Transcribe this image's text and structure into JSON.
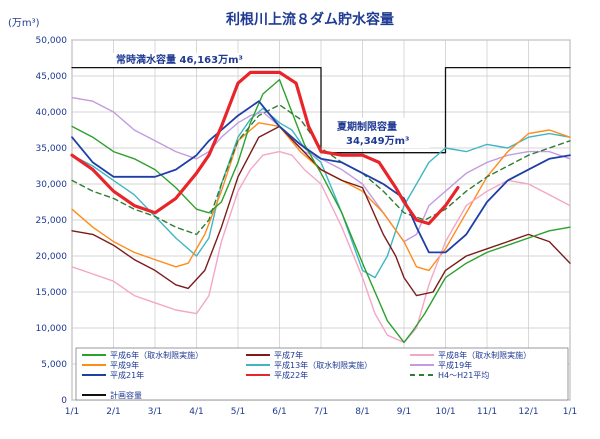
{
  "chart_data": {
    "type": "line",
    "title": "利根川上流８ダム貯水容量",
    "ylabel": "(万m³)",
    "ylim": [
      0,
      50000
    ],
    "yticks": [
      0,
      5000,
      10000,
      15000,
      20000,
      25000,
      30000,
      35000,
      40000,
      45000,
      50000
    ],
    "ytick_labels": [
      "0",
      "5,000",
      "10,000",
      "15,000",
      "20,000",
      "25,000",
      "30,000",
      "35,000",
      "40,000",
      "45,000",
      "50,000"
    ],
    "xlim": [
      1,
      13
    ],
    "xticks": [
      1,
      2,
      3,
      4,
      5,
      6,
      7,
      8,
      9,
      10,
      11,
      12,
      13
    ],
    "xtick_labels": [
      "1/1",
      "2/1",
      "3/1",
      "4/1",
      "5/1",
      "6/1",
      "7/1",
      "8/1",
      "9/1",
      "10/1",
      "11/1",
      "12/1",
      "1/1"
    ],
    "annotations": {
      "normal_capacity_label": "常時満水容量 46,163万m³",
      "summer_capacity_label1": "夏期制限容量",
      "summer_capacity_label2": "34,349万m³"
    },
    "series": [
      {
        "name": "平成6年（取水制限実施）",
        "color": "#2ca02c",
        "width": 1.4,
        "dash": "",
        "x": [
          1,
          1.5,
          2,
          2.5,
          3,
          3.5,
          4,
          4.3,
          4.6,
          5,
          5.3,
          5.6,
          6,
          6.3,
          6.6,
          7,
          7.5,
          8,
          8.3,
          8.6,
          9,
          9.2,
          9.5,
          10,
          10.5,
          11,
          11.5,
          12,
          12.5,
          13
        ],
        "y": [
          38000,
          36500,
          34500,
          33500,
          32000,
          29500,
          26500,
          26000,
          27500,
          33000,
          38500,
          42500,
          44500,
          40000,
          35500,
          31500,
          26000,
          19000,
          15000,
          11000,
          8000,
          9500,
          12000,
          17000,
          19000,
          20500,
          21500,
          22500,
          23500,
          24000
        ]
      },
      {
        "name": "平成7年",
        "color": "#7b1c1c",
        "width": 1.4,
        "dash": "",
        "x": [
          1,
          1.5,
          2,
          2.5,
          3,
          3.5,
          3.8,
          4.2,
          4.6,
          5,
          5.5,
          6,
          6.5,
          7,
          7.5,
          8,
          8.5,
          8.8,
          9,
          9.3,
          9.7,
          10,
          10.5,
          11,
          11.5,
          12,
          12.5,
          13
        ],
        "y": [
          23500,
          23000,
          21500,
          19500,
          18000,
          16000,
          15500,
          18000,
          24000,
          31000,
          36500,
          38000,
          35000,
          32000,
          30500,
          29500,
          23000,
          20000,
          17000,
          14500,
          15000,
          18000,
          20000,
          21000,
          22000,
          23000,
          22000,
          19000
        ]
      },
      {
        "name": "平成8年（取水制限実施）",
        "color": "#f4a6c6",
        "width": 1.4,
        "dash": "",
        "x": [
          1,
          1.5,
          2,
          2.5,
          3,
          3.5,
          4,
          4.3,
          4.6,
          5,
          5.3,
          5.6,
          6,
          6.3,
          6.6,
          7,
          7.5,
          8,
          8.3,
          8.6,
          9,
          9.3,
          9.6,
          10,
          10.5,
          11,
          11.5,
          12,
          12.5,
          13
        ],
        "y": [
          18500,
          17500,
          16500,
          14500,
          13500,
          12500,
          12000,
          14500,
          22000,
          29000,
          32000,
          34000,
          34500,
          34000,
          32000,
          30000,
          24000,
          17000,
          12000,
          9000,
          8000,
          10000,
          16000,
          22000,
          27000,
          29000,
          30500,
          30000,
          28500,
          27000
        ]
      },
      {
        "name": "平成9年",
        "color": "#ff8c1a",
        "width": 1.4,
        "dash": "",
        "x": [
          1,
          1.5,
          2,
          2.5,
          3,
          3.5,
          3.8,
          4.2,
          4.6,
          5,
          5.5,
          6,
          6.5,
          7,
          7.5,
          8,
          8.5,
          9,
          9.3,
          9.6,
          10,
          10.5,
          11,
          11.5,
          12,
          12.5,
          13
        ],
        "y": [
          26500,
          24000,
          22000,
          20500,
          19500,
          18500,
          19000,
          23000,
          29000,
          36000,
          38500,
          38000,
          34500,
          32000,
          30500,
          29000,
          26000,
          22000,
          18500,
          18000,
          21000,
          26000,
          31000,
          34500,
          37000,
          37500,
          36500
        ]
      },
      {
        "name": "平成13年（取水制限実施）",
        "color": "#3fb6c4",
        "width": 1.4,
        "dash": "",
        "x": [
          1,
          1.5,
          2,
          2.5,
          3,
          3.5,
          4,
          4.3,
          4.6,
          5,
          5.3,
          5.6,
          6,
          6.3,
          6.6,
          7,
          7.5,
          8,
          8.3,
          8.6,
          9,
          9.3,
          9.6,
          10,
          10.5,
          11,
          11.5,
          12,
          12.5,
          13
        ],
        "y": [
          34000,
          32500,
          30500,
          28500,
          25500,
          22500,
          20000,
          22500,
          30000,
          36500,
          39000,
          40500,
          38500,
          37500,
          35000,
          33000,
          26000,
          18000,
          17000,
          20000,
          27000,
          30000,
          33000,
          35000,
          34500,
          35500,
          35000,
          36500,
          37000,
          36500
        ]
      },
      {
        "name": "平成19年",
        "color": "#c39be0",
        "width": 1.4,
        "dash": "",
        "x": [
          1,
          1.5,
          2,
          2.5,
          3,
          3.5,
          4,
          4.3,
          4.6,
          5,
          5.3,
          5.6,
          6,
          6.3,
          6.6,
          7,
          7.5,
          8,
          8.5,
          9,
          9.3,
          9.6,
          10,
          10.5,
          11,
          11.5,
          12,
          12.5,
          13
        ],
        "y": [
          42000,
          41500,
          40000,
          37500,
          36000,
          34500,
          33500,
          34500,
          36500,
          38500,
          39500,
          40000,
          38000,
          36000,
          34500,
          33500,
          32000,
          30000,
          26000,
          22000,
          23000,
          27000,
          29000,
          31500,
          33000,
          34000,
          34500,
          34500,
          33500
        ]
      },
      {
        "name": "平成21年",
        "color": "#1f3fa6",
        "width": 1.8,
        "dash": "",
        "x": [
          1,
          1.5,
          2,
          2.5,
          3,
          3.5,
          4,
          4.3,
          4.6,
          5,
          5.5,
          6,
          6.5,
          7,
          7.5,
          8,
          8.5,
          9,
          9.3,
          9.6,
          10,
          10.5,
          11,
          11.5,
          12,
          12.5,
          13
        ],
        "y": [
          36500,
          33000,
          31000,
          31000,
          31000,
          32000,
          34000,
          36000,
          37500,
          39500,
          41500,
          38000,
          35500,
          33500,
          33000,
          31500,
          30000,
          28000,
          24000,
          20500,
          20500,
          23000,
          27500,
          30500,
          32000,
          33500,
          34000
        ]
      },
      {
        "name": "平成22年",
        "color": "#e8252a",
        "width": 3.2,
        "dash": "",
        "x": [
          1,
          1.5,
          2,
          2.5,
          3,
          3.5,
          4,
          4.3,
          4.6,
          5,
          5.3,
          5.7,
          6,
          6.4,
          6.7,
          7,
          7.5,
          8,
          8.4,
          8.8,
          9,
          9.3,
          9.6,
          10,
          10.3
        ],
        "y": [
          34000,
          32000,
          29000,
          27000,
          26000,
          28000,
          31500,
          34000,
          38000,
          44000,
          45500,
          45500,
          45500,
          44000,
          38000,
          34500,
          34000,
          34000,
          33000,
          29500,
          27500,
          25000,
          24500,
          27000,
          29500
        ]
      },
      {
        "name": "H4～H21平均",
        "color": "#2e7d32",
        "width": 1.4,
        "dash": "5,4",
        "x": [
          1,
          1.5,
          2,
          2.5,
          3,
          3.5,
          4,
          4.3,
          4.6,
          5,
          5.5,
          6,
          6.5,
          7,
          7.5,
          8,
          8.5,
          9,
          9.5,
          10,
          10.5,
          11,
          11.5,
          12,
          12.5,
          13
        ],
        "y": [
          30500,
          29000,
          28000,
          26500,
          25500,
          24000,
          23000,
          25000,
          30000,
          36000,
          39500,
          41000,
          39000,
          35000,
          33000,
          31500,
          29000,
          26000,
          25000,
          26500,
          29000,
          31000,
          32500,
          34000,
          35000,
          36000
        ]
      },
      {
        "name": "計画容量",
        "color": "#111111",
        "width": 1.3,
        "dash": "",
        "x": [
          1,
          7,
          7,
          10,
          10,
          13
        ],
        "y": [
          46163,
          46163,
          34349,
          34349,
          46163,
          46163
        ]
      }
    ],
    "legend": {
      "position": "bottom",
      "entries": [
        {
          "label": "平成6年（取水制限実施）",
          "color": "#2ca02c",
          "dash": ""
        },
        {
          "label": "平成7年",
          "color": "#7b1c1c",
          "dash": ""
        },
        {
          "label": "平成8年（取水制限実施）",
          "color": "#f4a6c6",
          "dash": ""
        },
        {
          "label": "平成9年",
          "color": "#ff8c1a",
          "dash": ""
        },
        {
          "label": "平成13年（取水制限実施）",
          "color": "#3fb6c4",
          "dash": ""
        },
        {
          "label": "平成19年",
          "color": "#c39be0",
          "dash": ""
        },
        {
          "label": "平成21年",
          "color": "#1f3fa6",
          "dash": ""
        },
        {
          "label": "平成22年",
          "color": "#e8252a",
          "dash": ""
        },
        {
          "label": "H4～H21平均",
          "color": "#2e7d32",
          "dash": "5,4"
        },
        {
          "label": "計画容量",
          "color": "#111111",
          "dash": ""
        }
      ]
    }
  }
}
